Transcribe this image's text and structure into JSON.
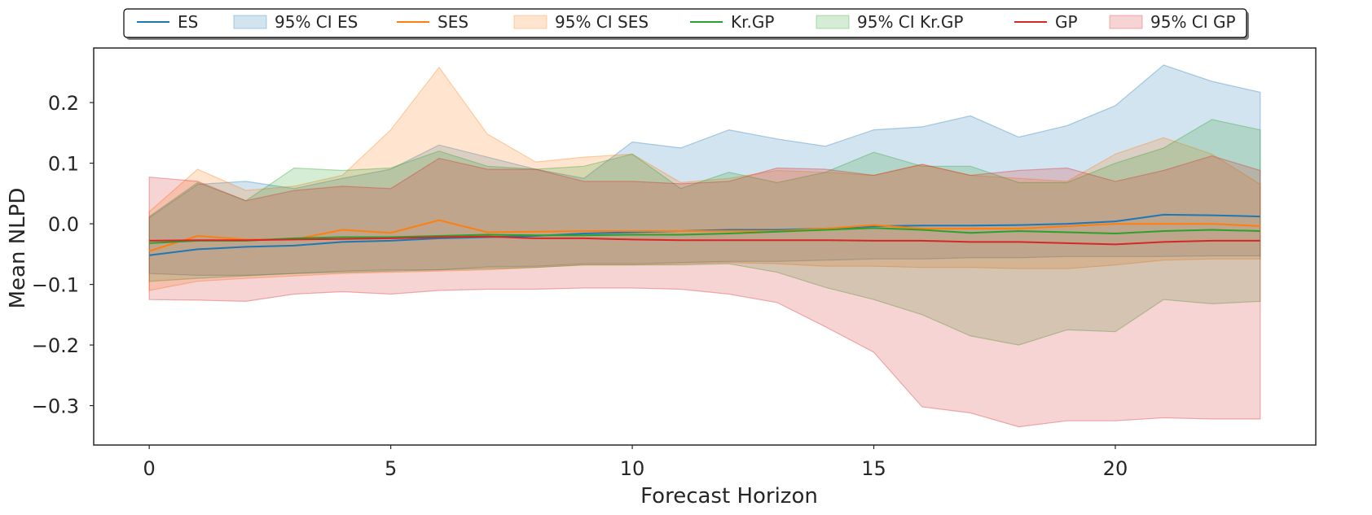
{
  "chart_data": {
    "type": "line",
    "xlabel": "Forecast Horizon",
    "ylabel": "Mean NLPD",
    "xlim": [
      -1.15,
      24.15
    ],
    "ylim": [
      -0.365,
      0.29
    ],
    "xticks": [
      0,
      5,
      10,
      15,
      20
    ],
    "yticks": [
      0.2,
      0.1,
      0.0,
      -0.1,
      -0.2,
      -0.3
    ],
    "ytick_labels": [
      "0.2",
      "0.1",
      "0.0",
      "−0.1",
      "−0.2",
      "−0.3"
    ],
    "grid": false,
    "legend_position": "top-center",
    "legend": [
      "ES",
      "95% CI ES",
      "SES",
      "95% CI SES",
      "Kr.GP",
      "95% CI Kr.GP",
      "GP",
      "95% CI GP"
    ],
    "x": [
      0,
      1,
      2,
      3,
      4,
      5,
      6,
      7,
      8,
      9,
      10,
      11,
      12,
      13,
      14,
      15,
      16,
      17,
      18,
      19,
      20,
      21,
      22,
      23
    ],
    "series": [
      {
        "name": "ES",
        "color": "#1f77b4",
        "mean": [
          -0.052,
          -0.042,
          -0.038,
          -0.036,
          -0.03,
          -0.028,
          -0.024,
          -0.022,
          -0.02,
          -0.016,
          -0.014,
          -0.012,
          -0.01,
          -0.01,
          -0.008,
          -0.004,
          -0.003,
          -0.003,
          -0.002,
          0.0,
          0.004,
          0.015,
          0.014,
          0.012
        ],
        "lower": [
          -0.082,
          -0.085,
          -0.085,
          -0.082,
          -0.078,
          -0.076,
          -0.076,
          -0.071,
          -0.07,
          -0.066,
          -0.066,
          -0.064,
          -0.062,
          -0.062,
          -0.06,
          -0.058,
          -0.058,
          -0.056,
          -0.056,
          -0.054,
          -0.054,
          -0.054,
          -0.053,
          -0.053
        ],
        "upper": [
          0.01,
          0.065,
          0.07,
          0.058,
          0.075,
          0.09,
          0.13,
          0.11,
          0.09,
          0.075,
          0.135,
          0.125,
          0.155,
          0.14,
          0.128,
          0.155,
          0.16,
          0.178,
          0.143,
          0.162,
          0.195,
          0.262,
          0.235,
          0.217
        ]
      },
      {
        "name": "SES",
        "color": "#ff7f0e",
        "mean": [
          -0.045,
          -0.02,
          -0.026,
          -0.026,
          -0.01,
          -0.015,
          0.006,
          -0.014,
          -0.013,
          -0.012,
          -0.012,
          -0.012,
          -0.012,
          -0.012,
          -0.008,
          -0.002,
          -0.008,
          -0.008,
          -0.008,
          -0.004,
          0.0,
          0.0,
          0.0,
          -0.004
        ],
        "lower": [
          -0.11,
          -0.095,
          -0.09,
          -0.086,
          -0.082,
          -0.08,
          -0.078,
          -0.076,
          -0.072,
          -0.068,
          -0.068,
          -0.066,
          -0.064,
          -0.066,
          -0.07,
          -0.07,
          -0.072,
          -0.072,
          -0.074,
          -0.074,
          -0.068,
          -0.06,
          -0.058,
          -0.058
        ],
        "upper": [
          0.02,
          0.09,
          0.055,
          0.062,
          0.08,
          0.155,
          0.258,
          0.148,
          0.102,
          0.11,
          0.115,
          0.068,
          0.075,
          0.088,
          0.085,
          0.08,
          0.098,
          0.08,
          0.075,
          0.07,
          0.115,
          0.142,
          0.115,
          0.065
        ]
      },
      {
        "name": "Kr.GP",
        "color": "#2ca02c",
        "mean": [
          -0.032,
          -0.028,
          -0.028,
          -0.024,
          -0.022,
          -0.022,
          -0.02,
          -0.018,
          -0.019,
          -0.019,
          -0.018,
          -0.018,
          -0.016,
          -0.013,
          -0.01,
          -0.007,
          -0.01,
          -0.015,
          -0.012,
          -0.014,
          -0.016,
          -0.012,
          -0.01,
          -0.012
        ],
        "lower": [
          -0.095,
          -0.09,
          -0.086,
          -0.082,
          -0.08,
          -0.078,
          -0.076,
          -0.074,
          -0.072,
          -0.068,
          -0.068,
          -0.068,
          -0.066,
          -0.08,
          -0.105,
          -0.125,
          -0.15,
          -0.185,
          -0.2,
          -0.175,
          -0.178,
          -0.125,
          -0.132,
          -0.128
        ],
        "upper": [
          0.012,
          0.068,
          0.038,
          0.092,
          0.088,
          0.092,
          0.12,
          0.095,
          0.09,
          0.095,
          0.115,
          0.058,
          0.085,
          0.068,
          0.085,
          0.118,
          0.095,
          0.095,
          0.068,
          0.068,
          0.1,
          0.125,
          0.172,
          0.155
        ]
      },
      {
        "name": "GP",
        "color": "#d62728",
        "mean": [
          -0.028,
          -0.027,
          -0.027,
          -0.026,
          -0.025,
          -0.024,
          -0.022,
          -0.021,
          -0.024,
          -0.024,
          -0.026,
          -0.027,
          -0.027,
          -0.027,
          -0.027,
          -0.028,
          -0.028,
          -0.03,
          -0.03,
          -0.032,
          -0.034,
          -0.03,
          -0.028,
          -0.028
        ],
        "lower": [
          -0.125,
          -0.126,
          -0.128,
          -0.116,
          -0.112,
          -0.116,
          -0.11,
          -0.108,
          -0.108,
          -0.106,
          -0.106,
          -0.108,
          -0.116,
          -0.13,
          -0.17,
          -0.212,
          -0.302,
          -0.312,
          -0.335,
          -0.325,
          -0.325,
          -0.32,
          -0.322,
          -0.322
        ],
        "upper": [
          0.077,
          0.07,
          0.038,
          0.055,
          0.062,
          0.058,
          0.108,
          0.09,
          0.09,
          0.07,
          0.07,
          0.066,
          0.07,
          0.092,
          0.09,
          0.08,
          0.098,
          0.08,
          0.088,
          0.092,
          0.07,
          0.088,
          0.112,
          0.088
        ]
      }
    ]
  }
}
